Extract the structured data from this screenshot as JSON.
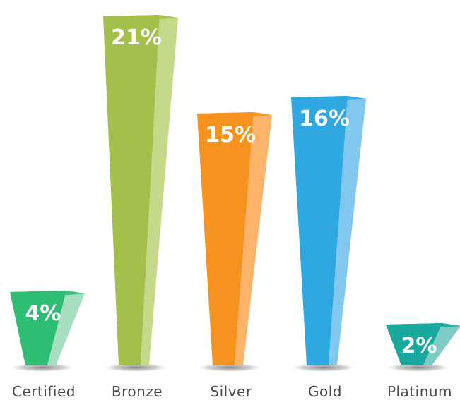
{
  "chart_data": {
    "type": "bar",
    "title": "",
    "xlabel": "",
    "ylabel": "",
    "categories": [
      "Certified",
      "Bronze",
      "Silver",
      "Gold",
      "Platinum"
    ],
    "values": [
      4,
      21,
      15,
      16,
      2
    ],
    "value_labels": [
      "4%",
      "21%",
      "15%",
      "16%",
      "2%"
    ],
    "unit": "%",
    "colors": {
      "main": [
        "#2ebd72",
        "#a3c04a",
        "#f6921e",
        "#2fa7e1",
        "#18a89e"
      ],
      "side": [
        "#a5dfbf",
        "#c4d98a",
        "#fbb46a",
        "#82c7ee",
        "#7fcbc6"
      ],
      "shadow": "#8a8a8a"
    }
  }
}
